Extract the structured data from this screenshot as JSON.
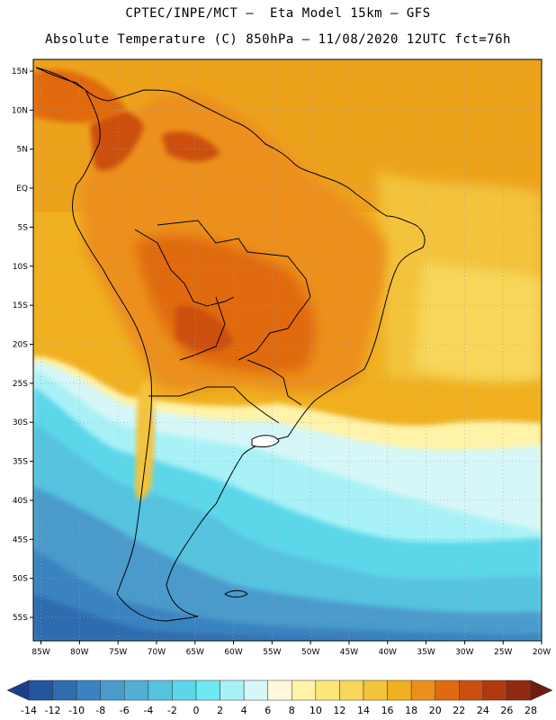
{
  "header": {
    "title_line1": "CPTEC/INPE/MCT –  Eta Model 15km – GFS",
    "title_line2": "Absolute Temperature (C) 850hPa – 11/08/2020 12UTC fct=76h"
  },
  "map": {
    "lon_labels": [
      "85W",
      "80W",
      "75W",
      "70W",
      "65W",
      "60W",
      "55W",
      "50W",
      "45W",
      "40W",
      "35W",
      "30W",
      "25W",
      "20W"
    ],
    "lat_labels": [
      "15N",
      "10N",
      "5N",
      "EQ",
      "5S",
      "10S",
      "15S",
      "20S",
      "25S",
      "30S",
      "35S",
      "40S",
      "45S",
      "50S",
      "55S"
    ],
    "lon_values": [
      -85,
      -80,
      -75,
      -70,
      -65,
      -60,
      -55,
      -50,
      -45,
      -40,
      -35,
      -30,
      -25,
      -20
    ],
    "lat_values": [
      15,
      10,
      5,
      0,
      -5,
      -10,
      -15,
      -20,
      -25,
      -30,
      -35,
      -40,
      -45,
      -50,
      -55
    ],
    "lon_range": [
      -86,
      -20
    ],
    "lat_range": [
      -58,
      16.5
    ]
  },
  "colorbar": {
    "labels": [
      "-14",
      "-12",
      "-10",
      "-8",
      "-6",
      "-4",
      "-2",
      "0",
      "2",
      "4",
      "6",
      "8",
      "10",
      "12",
      "14",
      "16",
      "18",
      "20",
      "22",
      "24",
      "26",
      "28"
    ],
    "colors": [
      "#1a3f8f",
      "#23569f",
      "#2f6cb0",
      "#3a83c0",
      "#4b9acc",
      "#52afd6",
      "#56c3df",
      "#5cd7ea",
      "#6ee8f2",
      "#a8f2f7",
      "#d6f7f7",
      "#fff8dc",
      "#fff3a8",
      "#fbe67a",
      "#f7d65a",
      "#f3c33a",
      "#f0b020",
      "#ec8f1a",
      "#e06a10",
      "#cc4f10",
      "#b03a10",
      "#8f2a12",
      "#6e1c12"
    ]
  }
}
